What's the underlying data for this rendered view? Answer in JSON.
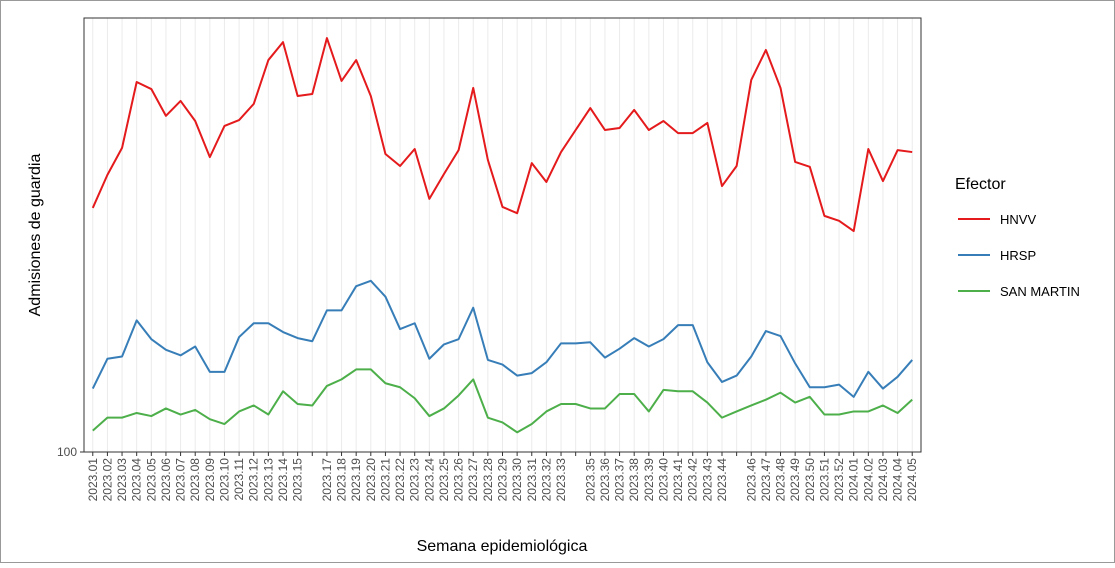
{
  "chart_data": {
    "type": "line",
    "log_scale": true,
    "grid": true,
    "legend": "right",
    "x_label": "Semana epidemiológica",
    "y_label": "Admisiones de guardia",
    "legend_title": "Efector",
    "categories": [
      "2023.01",
      "2023.02",
      "2023.03",
      "2023.04",
      "2023.05",
      "2023.06",
      "2023.07",
      "2023.08",
      "2023.09",
      "2023.10",
      "2023.11",
      "2023.12",
      "2023.13",
      "2023.14",
      "2023.15",
      null,
      "2023.17",
      "2023.18",
      "2023.19",
      "2023.20",
      "2023.21",
      "2023.22",
      "2023.23",
      "2023.24",
      "2023.25",
      "2023.26",
      "2023.27",
      "2023.28",
      "2023.29",
      "2023.30",
      "2023.31",
      "2023.32",
      "2023.33",
      null,
      "2023.35",
      "2023.36",
      "2023.37",
      "2023.38",
      "2023.39",
      "2023.40",
      "2023.41",
      "2023.42",
      "2023.43",
      "2023.44",
      null,
      "2023.46",
      "2023.47",
      "2023.48",
      "2023.49",
      "2023.50",
      "2023.51",
      "2023.52",
      "2024.01",
      "2024.02",
      "2024.03",
      "2024.04",
      "2024.05"
    ],
    "ylim": [
      100,
      1000
    ],
    "yticks": [
      100
    ],
    "series": [
      {
        "name": "HNVV",
        "color": "#e41a1c",
        "values": [
          365,
          435,
          502,
          712,
          686,
          595,
          644,
          579,
          478,
          564,
          582,
          634,
          800,
          880,
          661,
          668,
          899,
          716,
          800,
          661,
          486,
          456,
          499,
          383,
          437,
          496,
          690,
          471,
          367,
          355,
          463,
          419,
          491,
          552,
          620,
          552,
          558,
          614,
          552,
          579,
          543,
          543,
          573,
          410,
          456,
          720,
          844,
          690,
          466,
          454,
          350,
          341,
          323,
          499,
          421,
          496,
          491
        ]
      },
      {
        "name": "HRSP",
        "color": "#377eb8",
        "values": [
          140,
          164,
          166,
          201,
          182,
          172,
          167,
          175,
          153,
          153,
          184,
          198,
          198,
          189,
          183,
          180,
          212,
          212,
          241,
          248,
          228,
          192,
          198,
          164,
          177,
          182,
          215,
          163,
          159,
          150,
          152,
          161,
          178,
          178,
          179,
          165,
          173,
          183,
          175,
          182,
          196,
          196,
          161,
          145,
          150,
          166,
          190,
          185,
          160,
          141,
          141,
          143,
          134,
          153,
          140,
          149,
          163
        ]
      },
      {
        "name": "SAN MARTIN",
        "color": "#4daf4a",
        "values": [
          112,
          120,
          120,
          123,
          121,
          126,
          122,
          125,
          119,
          116,
          124,
          128,
          122,
          138,
          129,
          128,
          142,
          147,
          155,
          155,
          144,
          141,
          133,
          121,
          126,
          135,
          147,
          120,
          117,
          111,
          116,
          124,
          129,
          129,
          126,
          126,
          136,
          136,
          124,
          139,
          138,
          138,
          130,
          120,
          124,
          128,
          132,
          137,
          130,
          134,
          122,
          122,
          124,
          124,
          128,
          123,
          132
        ]
      }
    ]
  }
}
